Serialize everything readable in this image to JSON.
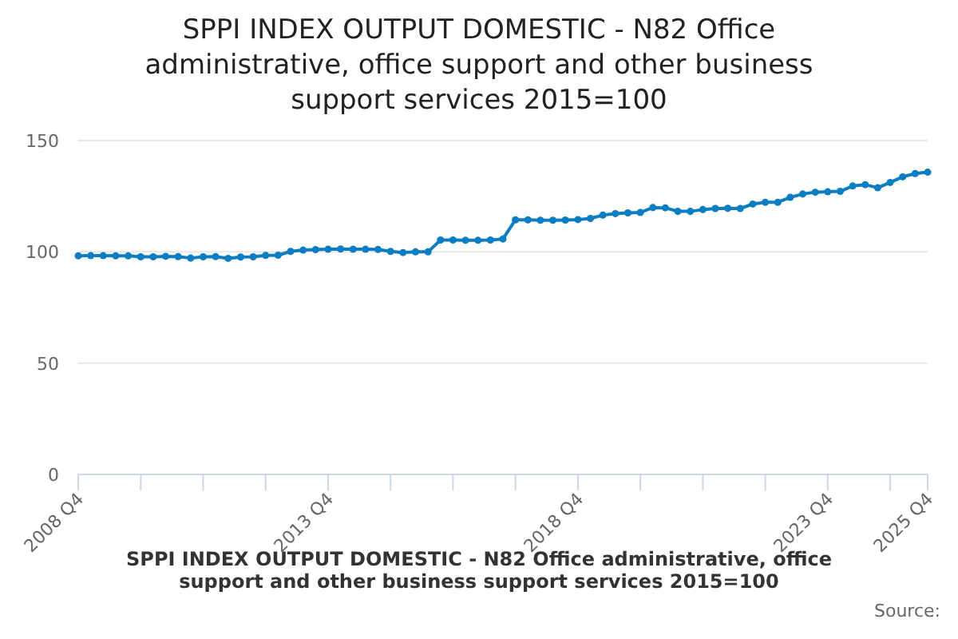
{
  "chart_data": {
    "type": "line",
    "title": "SPPI INDEX OUTPUT DOMESTIC - N82 Office administrative, office support and other business support services 2015=100",
    "categories": [
      "2008 Q4",
      null,
      null,
      null,
      null,
      null,
      null,
      null,
      null,
      null,
      null,
      null,
      null,
      null,
      null,
      null,
      null,
      null,
      null,
      null,
      "2013 Q4",
      null,
      null,
      null,
      null,
      null,
      null,
      null,
      null,
      null,
      null,
      null,
      null,
      null,
      null,
      null,
      null,
      null,
      null,
      null,
      "2018 Q4",
      null,
      null,
      null,
      null,
      null,
      null,
      null,
      null,
      null,
      null,
      null,
      null,
      null,
      null,
      null,
      null,
      null,
      null,
      null,
      "2023 Q4",
      null,
      null,
      null,
      null,
      null,
      null,
      null,
      "2025 Q4"
    ],
    "series": [
      {
        "name": "SPPI INDEX OUTPUT DOMESTIC - N82 Office administrative, office support and other business support services 2015=100",
        "color": "#0b7dc3",
        "values": [
          98.2,
          98.3,
          98.3,
          98.2,
          98.2,
          97.8,
          97.8,
          98.0,
          97.9,
          97.2,
          97.8,
          97.9,
          97.1,
          97.7,
          97.8,
          98.4,
          98.5,
          100.2,
          100.8,
          101.0,
          101.2,
          101.3,
          101.2,
          101.2,
          101.1,
          100.2,
          99.7,
          100.0,
          100.0,
          105.3,
          105.3,
          105.2,
          105.2,
          105.3,
          105.8,
          114.4,
          114.4,
          114.2,
          114.2,
          114.3,
          114.5,
          115.0,
          116.5,
          117.2,
          117.5,
          117.7,
          119.9,
          119.8,
          118.2,
          118.2,
          119.0,
          119.5,
          119.6,
          119.5,
          121.5,
          122.3,
          122.3,
          124.5,
          126.0,
          126.8,
          127.0,
          127.2,
          129.6,
          130.2,
          128.8,
          131.2,
          133.7,
          135.2,
          135.8
        ]
      }
    ],
    "ylim": [
      0,
      150
    ],
    "yticks": [
      0,
      50,
      100,
      150
    ],
    "grid": "y",
    "marker": "circle",
    "line_style": "solid",
    "legend": "bottom",
    "annotations": [
      "Source:"
    ]
  }
}
